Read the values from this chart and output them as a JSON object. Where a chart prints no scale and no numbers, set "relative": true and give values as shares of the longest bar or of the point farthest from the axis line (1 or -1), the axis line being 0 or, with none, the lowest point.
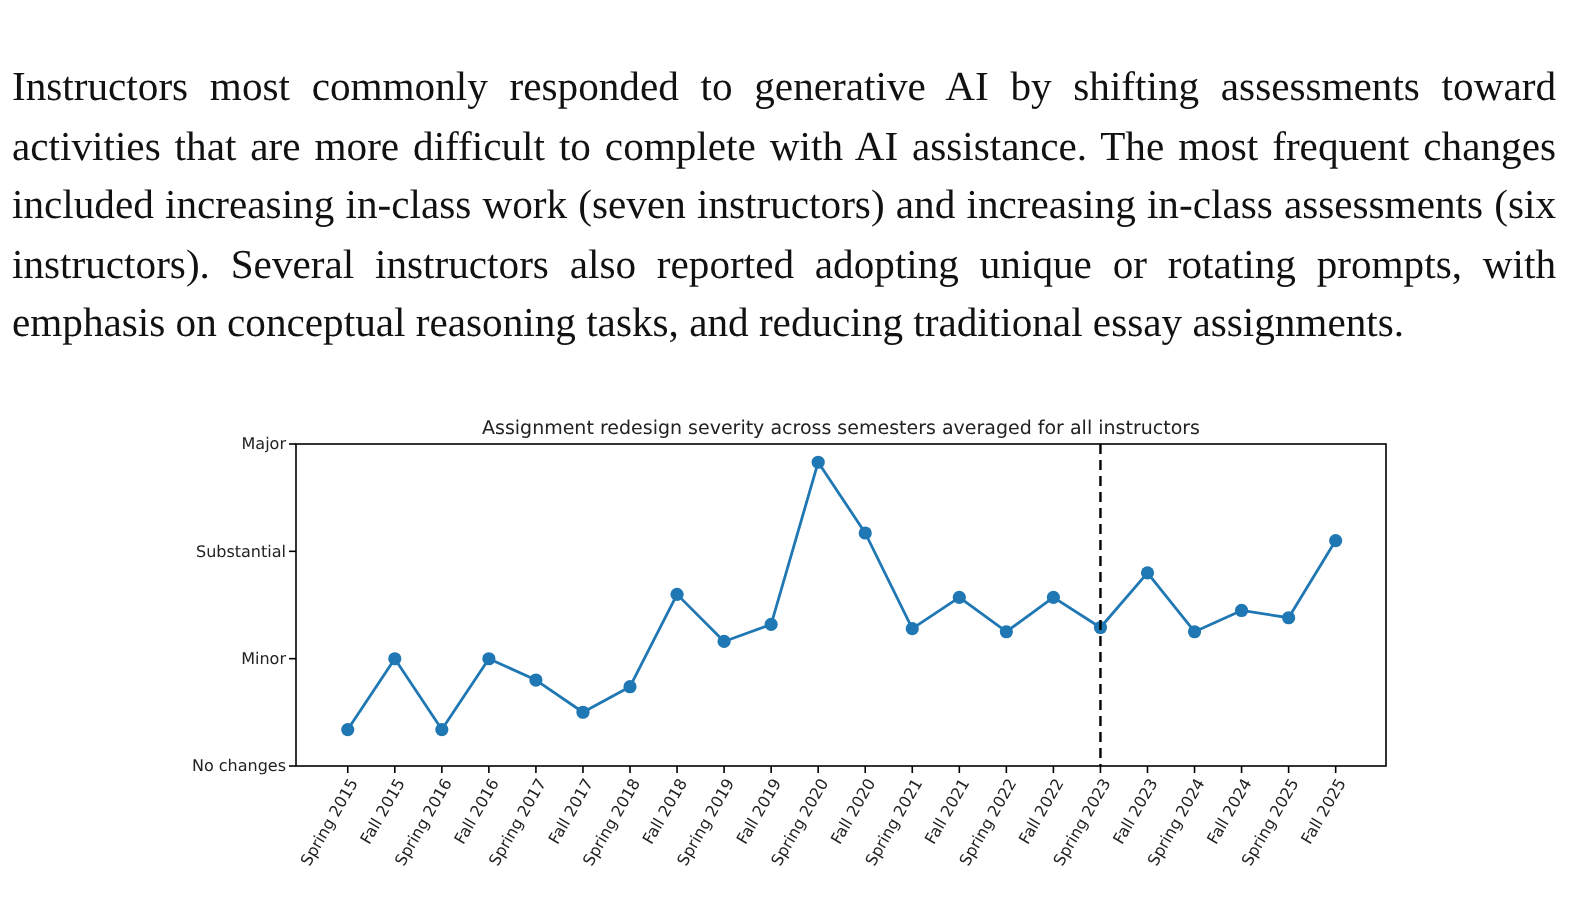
{
  "chart_data": {
    "type": "line",
    "title": "Assignment redesign severity across semesters averaged for all instructors",
    "annotations": [
      "Instructors most commonly responded to generative AI by shifting assessments toward activities that are more difficult to complete with AI assistance. The most frequent changes included increasing in-class work (seven instructors) and increasing in-class assessments (six instructors). Several instructors also reported adopting unique or rotating prompts, with emphasis on conceptual reasoning tasks, and reducing traditional essay assignments.",
      "No changes",
      "Minor",
      "Substantial",
      "Major"
    ],
    "categories": [
      "Spring 2015",
      "Fall 2015",
      "Spring 2016",
      "Fall 2016",
      "Spring 2017",
      "Fall 2017",
      "Spring 2018",
      "Fall 2018",
      "Spring 2019",
      "Fall 2019",
      "Spring 2020",
      "Fall 2020",
      "Spring 2021",
      "Fall 2021",
      "Spring 2022",
      "Fall 2022",
      "Spring 2023",
      "Fall 2023",
      "Spring 2024",
      "Fall 2024",
      "Spring 2025",
      "Fall 2025"
    ],
    "series": [
      {
        "color": "#1f77b4",
        "values": [
          0.12,
          0.353,
          0.12,
          0.353,
          0.283,
          0.177,
          0.261,
          0.565,
          0.41,
          0.466,
          1,
          0.767,
          0.452,
          0.555,
          0.442,
          0.555,
          0.456,
          0.636,
          0.442,
          0.512,
          0.488,
          0.742
        ]
      }
    ],
    "relative": true,
    "ref_lines": [
      {
        "axis": "x",
        "value": "Spring 2023",
        "color": "#000000",
        "line_style": "dashed"
      }
    ],
    "marker": "circle",
    "line_style": "solid",
    "grid": false
  }
}
